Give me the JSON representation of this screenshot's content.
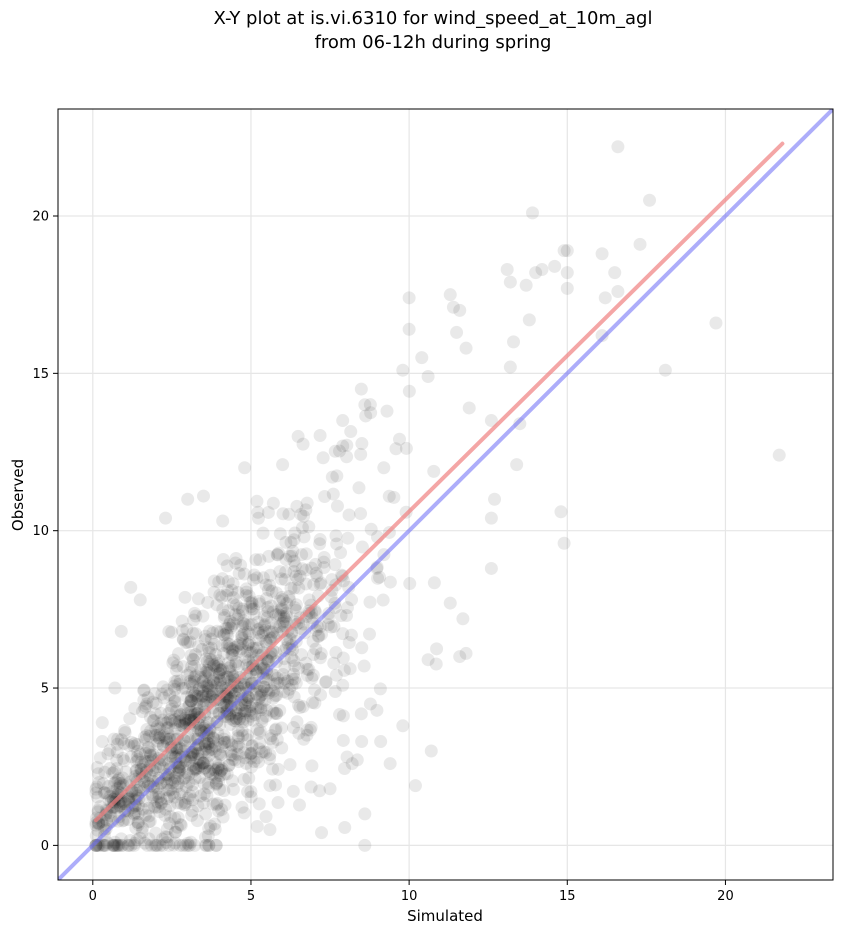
{
  "chart_data": {
    "type": "scatter",
    "title_lines": [
      "X-Y plot at is.vi.6310 for wind_speed_at_10m_agl",
      "from 06-12h during spring"
    ],
    "xlabel": "Simulated",
    "ylabel": "Observed",
    "xlim": [
      -1.1,
      23.4
    ],
    "ylim": [
      -1.1,
      23.4
    ],
    "xticks": [
      0,
      5,
      10,
      15,
      20
    ],
    "yticks": [
      0,
      5,
      10,
      15,
      20
    ],
    "grid": true,
    "colors": {
      "points": "#000000",
      "fit_line": "#f08080",
      "identity_line": "#6a6af5"
    },
    "fit_line": {
      "x": [
        0.1,
        21.8
      ],
      "y": [
        0.8,
        22.3
      ]
    },
    "identity_line": {
      "x": [
        -1.1,
        23.4
      ],
      "y": [
        -1.1,
        23.4
      ]
    },
    "cloud": {
      "count": 1400,
      "center_x": 4.8,
      "center_y": 5.0,
      "note_seed": 7
    },
    "series": [
      {
        "points": [
          [
            16.6,
            22.2
          ],
          [
            13.9,
            20.1
          ],
          [
            17.6,
            20.5
          ],
          [
            17.3,
            19.1
          ],
          [
            14.9,
            18.9
          ],
          [
            15.0,
            18.9
          ],
          [
            16.1,
            18.8
          ],
          [
            13.1,
            18.3
          ],
          [
            14.0,
            18.2
          ],
          [
            14.2,
            18.3
          ],
          [
            14.6,
            18.4
          ],
          [
            15.0,
            18.2
          ],
          [
            16.5,
            18.2
          ],
          [
            13.7,
            17.8
          ],
          [
            15.0,
            17.7
          ],
          [
            16.2,
            17.4
          ],
          [
            16.6,
            17.6
          ],
          [
            10.0,
            17.4
          ],
          [
            11.3,
            17.5
          ],
          [
            11.4,
            17.1
          ],
          [
            11.6,
            17.0
          ],
          [
            13.2,
            17.9
          ],
          [
            13.8,
            16.7
          ],
          [
            19.7,
            16.6
          ],
          [
            10.0,
            16.4
          ],
          [
            11.5,
            16.3
          ],
          [
            13.3,
            16.0
          ],
          [
            16.1,
            16.2
          ],
          [
            18.1,
            15.1
          ],
          [
            11.8,
            15.8
          ],
          [
            13.2,
            15.2
          ],
          [
            12.6,
            13.5
          ],
          [
            11.9,
            13.9
          ],
          [
            12.7,
            11.0
          ],
          [
            13.4,
            12.1
          ],
          [
            13.5,
            13.4
          ],
          [
            12.6,
            10.4
          ],
          [
            12.6,
            8.8
          ],
          [
            14.8,
            10.6
          ],
          [
            14.9,
            9.6
          ],
          [
            21.7,
            12.4
          ],
          [
            11.7,
            7.2
          ],
          [
            11.3,
            7.7
          ],
          [
            11.8,
            6.1
          ],
          [
            11.6,
            6.0
          ],
          [
            9.8,
            3.8
          ],
          [
            10.6,
            5.9
          ],
          [
            10.7,
            3.0
          ],
          [
            10.2,
            1.9
          ],
          [
            8.6,
            1.0
          ],
          [
            8.6,
            0.0
          ],
          [
            9.1,
            3.3
          ],
          [
            9.4,
            2.6
          ],
          [
            8.5,
            3.3
          ],
          [
            8.2,
            2.6
          ],
          [
            7.5,
            1.8
          ],
          [
            4.8,
            12.0
          ],
          [
            3.5,
            11.1
          ],
          [
            2.3,
            10.4
          ],
          [
            3.0,
            11.0
          ],
          [
            1.2,
            8.2
          ],
          [
            1.5,
            7.8
          ],
          [
            0.9,
            6.8
          ],
          [
            0.7,
            5.0
          ],
          [
            0.3,
            3.9
          ],
          [
            0.3,
            3.3
          ],
          [
            0.2,
            2.0
          ],
          [
            0.2,
            0.7
          ],
          [
            0.7,
            0.1
          ],
          [
            2.2,
            0.2
          ],
          [
            3.1,
            0.1
          ],
          [
            5.6,
            0.5
          ],
          [
            5.2,
            0.6
          ],
          [
            8.1,
            10.5
          ],
          [
            7.3,
            9.0
          ],
          [
            9.0,
            9.8
          ],
          [
            6.0,
            12.1
          ],
          [
            7.9,
            13.5
          ],
          [
            8.6,
            14.0
          ],
          [
            9.3,
            13.8
          ],
          [
            9.8,
            15.1
          ],
          [
            10.4,
            15.5
          ],
          [
            10.6,
            14.9
          ],
          [
            9.2,
            12.0
          ]
        ]
      }
    ]
  }
}
